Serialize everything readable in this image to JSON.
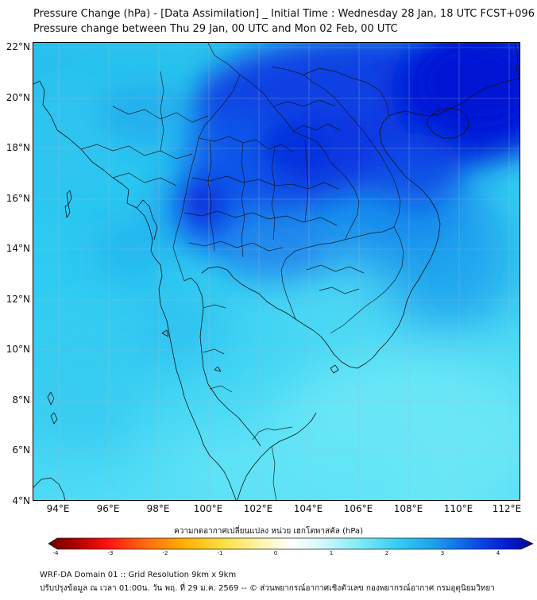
{
  "title_line1": "Pressure Change (hPa) - [Data Assimilation] _ Initial Time : Wednesday 28 Jan, 18 UTC FCST+096",
  "title_line2": "Pressure change between Thu 29 Jan, 00 UTC and Mon 02 Feb, 00 UTC",
  "lat_labels": [
    "22°N",
    "20°N",
    "18°N",
    "16°N",
    "14°N",
    "12°N",
    "10°N",
    "8°N",
    "6°N",
    "4°N"
  ],
  "lon_labels": [
    "94°E",
    "96°E",
    "98°E",
    "100°E",
    "102°E",
    "104°E",
    "106°E",
    "108°E",
    "110°E",
    "112°E"
  ],
  "colorbar": {
    "title": "ความกดอากาศเปลี่ยนแปลง หน่วย เฮกโตพาสคัล (hPa)",
    "ticks": [
      "-4",
      "-3",
      "-2",
      "-1",
      "0",
      "1",
      "2",
      "3",
      "4"
    ],
    "range": [
      -4,
      4
    ]
  },
  "footer_line1": "WRF-DA Domain 01 :: Grid Resolution 9km x 9km",
  "footer_line2": "ปรับปรุงข้อมูล ณ เวลา 01:00น. วัน พฤ. ที่ 29 ม.ค. 2569 -- © ส่วนพยากรณ์อากาศเชิงตัวเลข กองพยากรณ์อากาศ กรมอุตุนิยมวิทยา",
  "map": {
    "lat_range": [
      4,
      22
    ],
    "lon_range": [
      93,
      112.5
    ],
    "field_colors": {
      "light": "#5ee6f4",
      "mid": "#2fc8f0",
      "strong": "#0f5cf0",
      "deep": "#0318d8"
    }
  }
}
